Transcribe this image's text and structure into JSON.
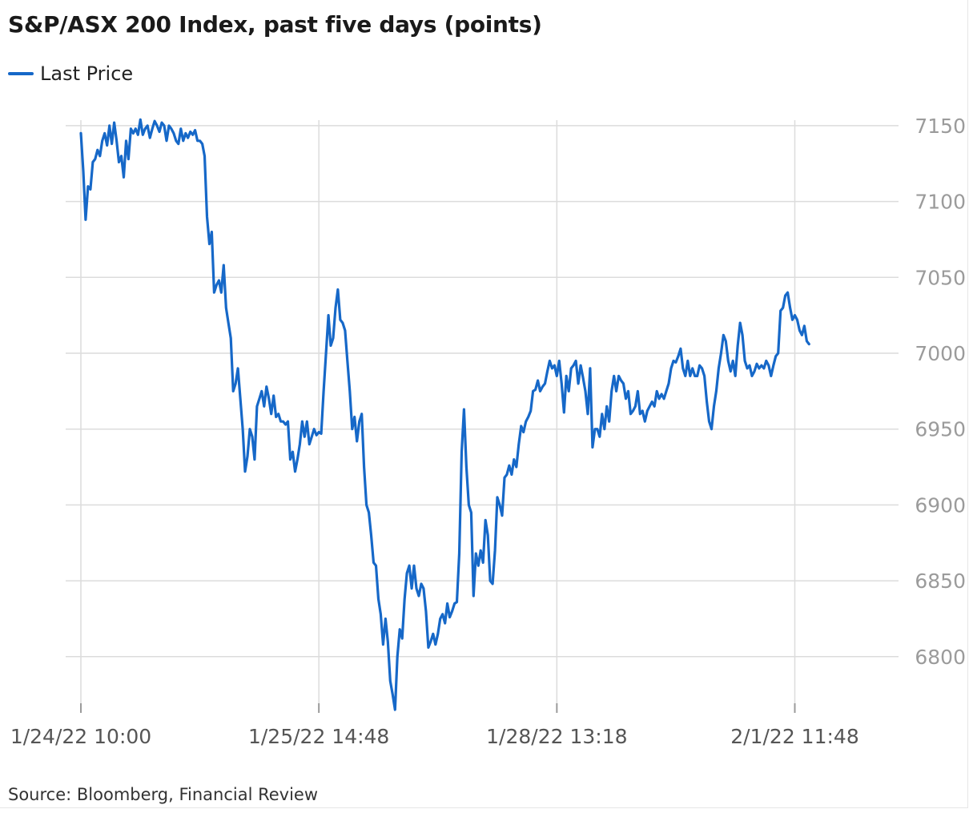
{
  "title": "S&P/ASX 200 Index, past five days (points)",
  "source": "Source: Bloomberg, Financial Review",
  "colors": {
    "series": "#1668c8",
    "grid": "#dcdcdc",
    "ytick": "#9b9b9b",
    "xtick": "#555555"
  },
  "chart_data": {
    "type": "line",
    "title": "S&P/ASX 200 Index, past five days (points)",
    "xlabel": "",
    "ylabel": "",
    "ylim": [
      6765,
      7155
    ],
    "yticks": [
      6800,
      6850,
      6900,
      6950,
      7000,
      7050,
      7100,
      7150
    ],
    "grid": true,
    "legend_position": "top-left",
    "x_ticks": [
      {
        "label": "1/24/22 10:00",
        "index": 0
      },
      {
        "label": "1/25/22 14:48",
        "index": 100
      },
      {
        "label": "1/28/22 13:18",
        "index": 200
      },
      {
        "label": "2/1/22 11:48",
        "index": 300
      }
    ],
    "series": [
      {
        "name": "Last Price",
        "color": "#1668c8",
        "points": [
          [
            0,
            7145
          ],
          [
            1,
            7120
          ],
          [
            2,
            7088
          ],
          [
            3,
            7110
          ],
          [
            4,
            7108
          ],
          [
            5,
            7126
          ],
          [
            6,
            7128
          ],
          [
            7,
            7134
          ],
          [
            8,
            7130
          ],
          [
            9,
            7140
          ],
          [
            10,
            7145
          ],
          [
            11,
            7137
          ],
          [
            12,
            7150
          ],
          [
            13,
            7138
          ],
          [
            14,
            7152
          ],
          [
            15,
            7140
          ],
          [
            16,
            7126
          ],
          [
            17,
            7130
          ],
          [
            18,
            7116
          ],
          [
            19,
            7140
          ],
          [
            20,
            7128
          ],
          [
            21,
            7148
          ],
          [
            22,
            7145
          ],
          [
            23,
            7148
          ],
          [
            24,
            7144
          ],
          [
            25,
            7154
          ],
          [
            26,
            7144
          ],
          [
            27,
            7148
          ],
          [
            28,
            7150
          ],
          [
            29,
            7142
          ],
          [
            30,
            7148
          ],
          [
            31,
            7153
          ],
          [
            32,
            7150
          ],
          [
            33,
            7146
          ],
          [
            34,
            7152
          ],
          [
            35,
            7150
          ],
          [
            36,
            7140
          ],
          [
            37,
            7150
          ],
          [
            38,
            7148
          ],
          [
            39,
            7145
          ],
          [
            40,
            7140
          ],
          [
            41,
            7138
          ],
          [
            42,
            7148
          ],
          [
            43,
            7140
          ],
          [
            44,
            7145
          ],
          [
            45,
            7142
          ],
          [
            46,
            7146
          ],
          [
            47,
            7144
          ],
          [
            48,
            7147
          ],
          [
            49,
            7140
          ],
          [
            50,
            7140
          ],
          [
            51,
            7138
          ],
          [
            52,
            7130
          ],
          [
            53,
            7090
          ],
          [
            54,
            7072
          ],
          [
            55,
            7080
          ],
          [
            56,
            7040
          ],
          [
            57,
            7045
          ],
          [
            58,
            7048
          ],
          [
            59,
            7040
          ],
          [
            60,
            7058
          ],
          [
            61,
            7030
          ],
          [
            62,
            7020
          ],
          [
            63,
            7010
          ],
          [
            64,
            6975
          ],
          [
            65,
            6980
          ],
          [
            66,
            6990
          ],
          [
            67,
            6970
          ],
          [
            68,
            6950
          ],
          [
            69,
            6922
          ],
          [
            70,
            6932
          ],
          [
            71,
            6950
          ],
          [
            72,
            6945
          ],
          [
            73,
            6930
          ],
          [
            74,
            6965
          ],
          [
            75,
            6970
          ],
          [
            76,
            6975
          ],
          [
            77,
            6965
          ],
          [
            78,
            6978
          ],
          [
            79,
            6970
          ],
          [
            80,
            6960
          ],
          [
            81,
            6972
          ],
          [
            82,
            6958
          ],
          [
            83,
            6960
          ],
          [
            84,
            6955
          ],
          [
            85,
            6955
          ],
          [
            86,
            6953
          ],
          [
            87,
            6955
          ],
          [
            88,
            6930
          ],
          [
            89,
            6935
          ],
          [
            90,
            6922
          ],
          [
            91,
            6930
          ],
          [
            92,
            6940
          ],
          [
            93,
            6955
          ],
          [
            94,
            6945
          ],
          [
            95,
            6955
          ],
          [
            96,
            6940
          ],
          [
            97,
            6945
          ],
          [
            98,
            6950
          ],
          [
            99,
            6946
          ],
          [
            100,
            6948
          ],
          [
            101,
            6947
          ],
          [
            102,
            6975
          ],
          [
            103,
            7000
          ],
          [
            104,
            7025
          ],
          [
            105,
            7005
          ],
          [
            106,
            7010
          ],
          [
            107,
            7030
          ],
          [
            108,
            7042
          ],
          [
            109,
            7022
          ],
          [
            110,
            7020
          ],
          [
            111,
            7015
          ],
          [
            112,
            6995
          ],
          [
            113,
            6975
          ],
          [
            114,
            6950
          ],
          [
            115,
            6958
          ],
          [
            116,
            6942
          ],
          [
            117,
            6955
          ],
          [
            118,
            6960
          ],
          [
            119,
            6925
          ],
          [
            120,
            6900
          ],
          [
            121,
            6895
          ],
          [
            122,
            6880
          ],
          [
            123,
            6862
          ],
          [
            124,
            6860
          ],
          [
            125,
            6838
          ],
          [
            126,
            6828
          ],
          [
            127,
            6808
          ],
          [
            128,
            6825
          ],
          [
            129,
            6810
          ],
          [
            130,
            6784
          ],
          [
            131,
            6775
          ],
          [
            132,
            6765
          ],
          [
            133,
            6800
          ],
          [
            134,
            6818
          ],
          [
            135,
            6812
          ],
          [
            136,
            6838
          ],
          [
            137,
            6855
          ],
          [
            138,
            6860
          ],
          [
            139,
            6845
          ],
          [
            140,
            6860
          ],
          [
            141,
            6845
          ],
          [
            142,
            6840
          ],
          [
            143,
            6848
          ],
          [
            144,
            6845
          ],
          [
            145,
            6830
          ],
          [
            146,
            6806
          ],
          [
            147,
            6810
          ],
          [
            148,
            6815
          ],
          [
            149,
            6808
          ],
          [
            150,
            6815
          ],
          [
            151,
            6825
          ],
          [
            152,
            6828
          ],
          [
            153,
            6822
          ],
          [
            154,
            6835
          ],
          [
            155,
            6826
          ],
          [
            156,
            6830
          ],
          [
            157,
            6835
          ],
          [
            158,
            6836
          ],
          [
            159,
            6868
          ],
          [
            160,
            6935
          ],
          [
            161,
            6963
          ],
          [
            162,
            6925
          ],
          [
            163,
            6900
          ],
          [
            164,
            6895
          ],
          [
            165,
            6840
          ],
          [
            166,
            6868
          ],
          [
            167,
            6860
          ],
          [
            168,
            6870
          ],
          [
            169,
            6862
          ],
          [
            170,
            6890
          ],
          [
            171,
            6880
          ],
          [
            172,
            6850
          ],
          [
            173,
            6848
          ],
          [
            174,
            6870
          ],
          [
            175,
            6905
          ],
          [
            176,
            6900
          ],
          [
            177,
            6893
          ],
          [
            178,
            6918
          ],
          [
            179,
            6920
          ],
          [
            180,
            6926
          ],
          [
            181,
            6920
          ],
          [
            182,
            6930
          ],
          [
            183,
            6925
          ],
          [
            184,
            6940
          ],
          [
            185,
            6952
          ],
          [
            186,
            6948
          ],
          [
            187,
            6955
          ],
          [
            188,
            6958
          ],
          [
            189,
            6962
          ],
          [
            190,
            6975
          ],
          [
            191,
            6976
          ],
          [
            192,
            6982
          ],
          [
            193,
            6975
          ],
          [
            194,
            6978
          ],
          [
            195,
            6980
          ],
          [
            196,
            6988
          ],
          [
            197,
            6995
          ],
          [
            198,
            6990
          ],
          [
            199,
            6992
          ],
          [
            200,
            6985
          ],
          [
            201,
            6995
          ],
          [
            202,
            6980
          ],
          [
            203,
            6961
          ],
          [
            204,
            6985
          ],
          [
            205,
            6975
          ],
          [
            206,
            6990
          ],
          [
            207,
            6992
          ],
          [
            208,
            6995
          ],
          [
            209,
            6980
          ],
          [
            210,
            6992
          ],
          [
            211,
            6984
          ],
          [
            212,
            6975
          ],
          [
            213,
            6960
          ],
          [
            214,
            6990
          ],
          [
            215,
            6938
          ],
          [
            216,
            6950
          ],
          [
            217,
            6950
          ],
          [
            218,
            6945
          ],
          [
            219,
            6960
          ],
          [
            220,
            6950
          ],
          [
            221,
            6965
          ],
          [
            222,
            6955
          ],
          [
            223,
            6975
          ],
          [
            224,
            6985
          ],
          [
            225,
            6975
          ],
          [
            226,
            6985
          ],
          [
            227,
            6982
          ],
          [
            228,
            6980
          ],
          [
            229,
            6970
          ],
          [
            230,
            6975
          ],
          [
            231,
            6960
          ],
          [
            232,
            6962
          ],
          [
            233,
            6965
          ],
          [
            234,
            6975
          ],
          [
            235,
            6960
          ],
          [
            236,
            6962
          ],
          [
            237,
            6955
          ],
          [
            238,
            6962
          ],
          [
            239,
            6965
          ],
          [
            240,
            6968
          ],
          [
            241,
            6965
          ],
          [
            242,
            6975
          ],
          [
            243,
            6970
          ],
          [
            244,
            6973
          ],
          [
            245,
            6970
          ],
          [
            246,
            6975
          ],
          [
            247,
            6980
          ],
          [
            248,
            6990
          ],
          [
            249,
            6995
          ],
          [
            250,
            6994
          ],
          [
            251,
            6998
          ],
          [
            252,
            7003
          ],
          [
            253,
            6990
          ],
          [
            254,
            6985
          ],
          [
            255,
            6995
          ],
          [
            256,
            6985
          ],
          [
            257,
            6990
          ],
          [
            258,
            6985
          ],
          [
            259,
            6985
          ],
          [
            260,
            6992
          ],
          [
            261,
            6990
          ],
          [
            262,
            6985
          ],
          [
            263,
            6968
          ],
          [
            264,
            6955
          ],
          [
            265,
            6950
          ],
          [
            266,
            6965
          ],
          [
            267,
            6975
          ],
          [
            268,
            6990
          ],
          [
            269,
            7000
          ],
          [
            270,
            7012
          ],
          [
            271,
            7008
          ],
          [
            272,
            6995
          ],
          [
            273,
            6988
          ],
          [
            274,
            6995
          ],
          [
            275,
            6985
          ],
          [
            276,
            7005
          ],
          [
            277,
            7020
          ],
          [
            278,
            7012
          ],
          [
            279,
            6995
          ],
          [
            280,
            6990
          ],
          [
            281,
            6992
          ],
          [
            282,
            6985
          ],
          [
            283,
            6988
          ],
          [
            284,
            6993
          ],
          [
            285,
            6990
          ],
          [
            286,
            6992
          ],
          [
            287,
            6990
          ],
          [
            288,
            6995
          ],
          [
            289,
            6992
          ],
          [
            290,
            6985
          ],
          [
            291,
            6992
          ],
          [
            292,
            6998
          ],
          [
            293,
            7000
          ],
          [
            294,
            7028
          ],
          [
            295,
            7030
          ],
          [
            296,
            7038
          ],
          [
            297,
            7040
          ],
          [
            298,
            7030
          ],
          [
            299,
            7022
          ],
          [
            300,
            7025
          ],
          [
            301,
            7022
          ],
          [
            302,
            7015
          ],
          [
            303,
            7012
          ],
          [
            304,
            7018
          ],
          [
            305,
            7008
          ],
          [
            306,
            7006
          ]
        ]
      }
    ]
  }
}
